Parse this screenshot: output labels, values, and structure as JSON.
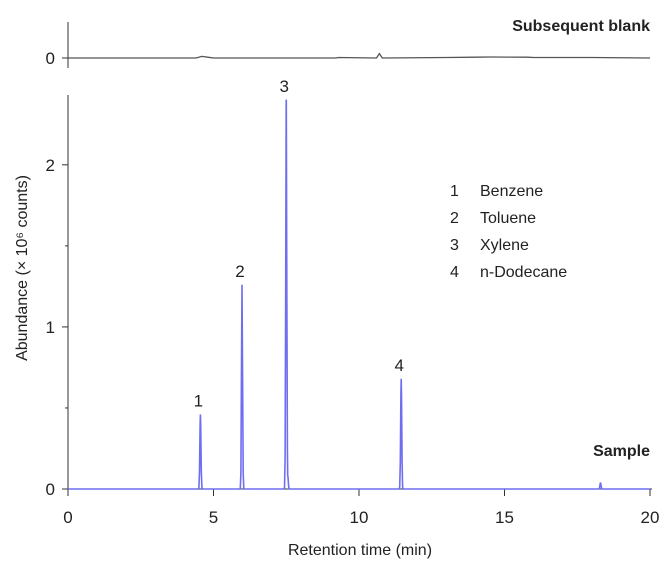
{
  "chart_data": [
    {
      "type": "line",
      "title": "Subsequent blank",
      "title_color": "#000000",
      "line_color": "#555555",
      "xlim": [
        0,
        20
      ],
      "y_ticks": [
        {
          "value": 0,
          "label": "0"
        }
      ],
      "series": [
        {
          "x": [
            0,
            4.4,
            4.6,
            4.8,
            5.0,
            9.2,
            9.3,
            10.6,
            10.7,
            10.8,
            13.0,
            14.0,
            14.5,
            15.8,
            16.0,
            18.0,
            20
          ],
          "values": [
            0,
            0,
            0.06,
            0.03,
            0,
            0,
            0.02,
            0,
            0.17,
            0,
            0.02,
            0.03,
            0.04,
            0.03,
            0.02,
            0.02,
            0
          ]
        }
      ]
    },
    {
      "type": "line",
      "title": "Sample",
      "title_color": "#1a1adb",
      "line_color": "#6e6ef0",
      "xlabel": "Retention time (min)",
      "ylabel": "Abundance (× 10⁶ counts)",
      "xlim": [
        0,
        20
      ],
      "ylim": [
        0,
        2.4
      ],
      "x_ticks": [
        0,
        5,
        10,
        15,
        20
      ],
      "y_ticks": [
        {
          "value": 0,
          "label": "0"
        },
        {
          "value": 1,
          "label": "1"
        },
        {
          "value": 2,
          "label": "2"
        }
      ],
      "peaks": [
        {
          "label": "1",
          "x": 4.55,
          "y": 0.46
        },
        {
          "label": "2",
          "x": 5.98,
          "y": 1.26
        },
        {
          "label": "3",
          "x": 7.5,
          "y": 2.4
        },
        {
          "label": "4",
          "x": 11.45,
          "y": 0.68
        }
      ],
      "minor_peaks": [
        {
          "x": 7.55,
          "y": 0.08
        },
        {
          "x": 18.3,
          "y": 0.04
        }
      ],
      "legend": {
        "position": "top-right",
        "entries": [
          {
            "number": "1",
            "name": "Benzene"
          },
          {
            "number": "2",
            "name": "Toluene"
          },
          {
            "number": "3",
            "name": "Xylene"
          },
          {
            "number": "4",
            "name": "n-Dodecane"
          }
        ]
      }
    }
  ]
}
